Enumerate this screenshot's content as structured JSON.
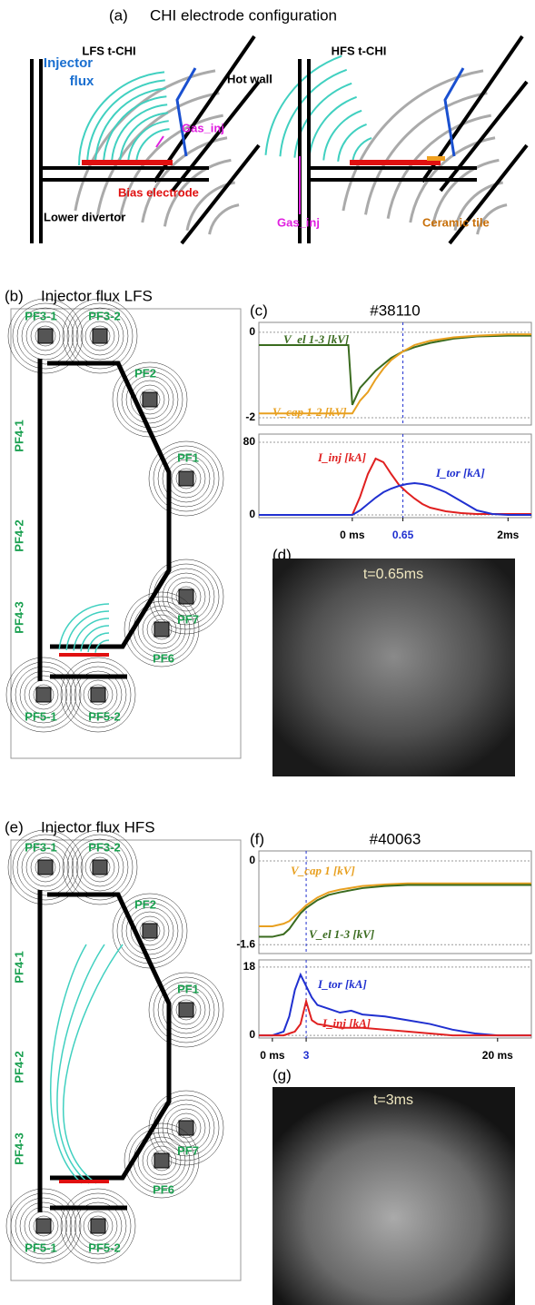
{
  "panel_a": {
    "label": "(a)",
    "title": "CHI electrode configuration",
    "left": {
      "title": "LFS t-CHI",
      "labels": [
        "Injector",
        "flux",
        "Hot wall",
        "Gas_inj",
        "Bias electrode",
        "Lower divertor"
      ]
    },
    "right": {
      "title": "HFS t-CHI",
      "labels": [
        "Gas_inj",
        "Ceramic tile"
      ]
    }
  },
  "panel_b": {
    "label": "(b)",
    "title": "Injector flux LFS",
    "coils": [
      "PF3-1",
      "PF3-2",
      "PF2",
      "PF4-1",
      "PF1",
      "PF4-2",
      "PF4-3",
      "PF7",
      "PF6",
      "PF5-1",
      "PF5-2"
    ]
  },
  "panel_d": {
    "label": "(d)",
    "caption": "t=0.65ms"
  },
  "panel_e": {
    "label": "(e)",
    "title": "Injector flux HFS",
    "coils": [
      "PF3-1",
      "PF3-2",
      "PF2",
      "PF4-1",
      "PF1",
      "PF4-2",
      "PF4-3",
      "PF7",
      "PF6",
      "PF5-1",
      "PF5-2"
    ]
  },
  "panel_g": {
    "label": "(g)",
    "caption": "t=3ms"
  },
  "chart_data": [
    {
      "type": "line",
      "panel_label": "(c)",
      "title": "#38110",
      "x": [
        -1.2,
        -0.6,
        -0.05,
        0,
        0.05,
        0.1,
        0.2,
        0.3,
        0.4,
        0.5,
        0.65,
        0.8,
        1.0,
        1.3,
        1.6,
        2.0,
        2.3
      ],
      "series": [
        {
          "name": "V_el 1-3 [kV]",
          "color": "#3a6b1f",
          "values": [
            -0.3,
            -0.3,
            -0.3,
            -1.7,
            -1.5,
            -1.3,
            -1.1,
            -0.9,
            -0.75,
            -0.6,
            -0.45,
            -0.35,
            -0.25,
            -0.15,
            -0.1,
            -0.08,
            -0.08
          ]
        },
        {
          "name": "V_cap 1-2 [kV]",
          "color": "#e8a020",
          "values": [
            -1.9,
            -1.9,
            -1.9,
            -1.9,
            -1.75,
            -1.6,
            -1.4,
            -1.1,
            -0.85,
            -0.65,
            -0.45,
            -0.3,
            -0.2,
            -0.12,
            -0.08,
            -0.05,
            -0.05
          ]
        }
      ],
      "xlim": [
        -1.2,
        2.3
      ],
      "ylim": [
        -2.17,
        0.23
      ],
      "yticks": [
        0,
        -2
      ],
      "vline": 0.65,
      "grid": true
    },
    {
      "type": "line",
      "x": [
        -1.2,
        -0.5,
        0,
        0.1,
        0.2,
        0.3,
        0.4,
        0.5,
        0.6,
        0.7,
        0.8,
        0.9,
        1.0,
        1.2,
        1.4,
        1.6,
        1.8,
        2.0,
        2.3
      ],
      "series": [
        {
          "name": "I_inj [kA]",
          "color": "#e02020",
          "values": [
            0,
            0,
            0,
            20,
            45,
            62,
            58,
            45,
            33,
            25,
            18,
            12,
            8,
            4,
            2,
            1,
            1,
            1,
            1
          ]
        },
        {
          "name": "I_tor [kA]",
          "color": "#2030d0",
          "values": [
            0,
            0,
            0,
            5,
            12,
            19,
            25,
            29,
            32,
            34,
            35,
            34,
            32,
            25,
            15,
            5,
            1,
            0,
            0
          ]
        }
      ],
      "xlim": [
        -1.2,
        2.3
      ],
      "ylim": [
        -3,
        89
      ],
      "yticks": [
        0,
        80
      ],
      "xticks": [
        {
          "value": 0,
          "label": "0 ms"
        },
        0.65,
        {
          "value": 2,
          "label": "2ms"
        }
      ],
      "vline": 0.65,
      "grid": true
    },
    {
      "type": "line",
      "panel_label": "(f)",
      "title": "#40063",
      "x": [
        -1.2,
        0,
        1,
        1.5,
        2,
        2.5,
        3,
        4,
        5,
        6,
        8,
        10,
        12,
        15,
        18,
        20,
        23
      ],
      "series": [
        {
          "name": "V_cap 1 [kV]",
          "color": "#e8a020",
          "values": [
            -1.25,
            -1.25,
            -1.2,
            -1.15,
            -1.05,
            -0.95,
            -0.85,
            -0.7,
            -0.6,
            -0.55,
            -0.48,
            -0.45,
            -0.43,
            -0.43,
            -0.43,
            -0.43,
            -0.43
          ]
        },
        {
          "name": "V_el 1-3 [kV]",
          "color": "#3a6b1f",
          "values": [
            -1.45,
            -1.45,
            -1.4,
            -1.3,
            -1.15,
            -1.0,
            -0.9,
            -0.75,
            -0.65,
            -0.6,
            -0.52,
            -0.48,
            -0.46,
            -0.46,
            -0.46,
            -0.46,
            -0.46
          ]
        }
      ],
      "xlim": [
        -1.2,
        23
      ],
      "ylim": [
        -1.77,
        0.19
      ],
      "yticks": [
        0,
        -1.6
      ],
      "vline": 3,
      "grid": true
    },
    {
      "type": "line",
      "x": [
        -1.2,
        0,
        1,
        1.5,
        2,
        2.5,
        3,
        3.5,
        4,
        5,
        6,
        7,
        8,
        10,
        12,
        14,
        16,
        18,
        20,
        23
      ],
      "series": [
        {
          "name": "I_tor [kA]",
          "color": "#2030d0",
          "values": [
            0,
            0,
            1,
            5,
            12,
            16,
            13,
            10,
            8,
            7,
            6,
            6.5,
            5.5,
            5,
            4,
            3,
            1.5,
            0.5,
            0,
            0
          ]
        },
        {
          "name": "I_inj [kA]",
          "color": "#e02020",
          "values": [
            0,
            0,
            0,
            0.5,
            1,
            3,
            9,
            4,
            3,
            2.5,
            2,
            2,
            2,
            1.5,
            1,
            0.5,
            0,
            0,
            0,
            0
          ]
        }
      ],
      "xlim": [
        -1.2,
        23
      ],
      "ylim": [
        -0.7,
        19.9
      ],
      "yticks": [
        0,
        18
      ],
      "xticks": [
        {
          "value": 0,
          "label": "0 ms"
        },
        3,
        {
          "value": 20,
          "label": "20 ms"
        }
      ],
      "vline": 3,
      "grid": true
    }
  ]
}
